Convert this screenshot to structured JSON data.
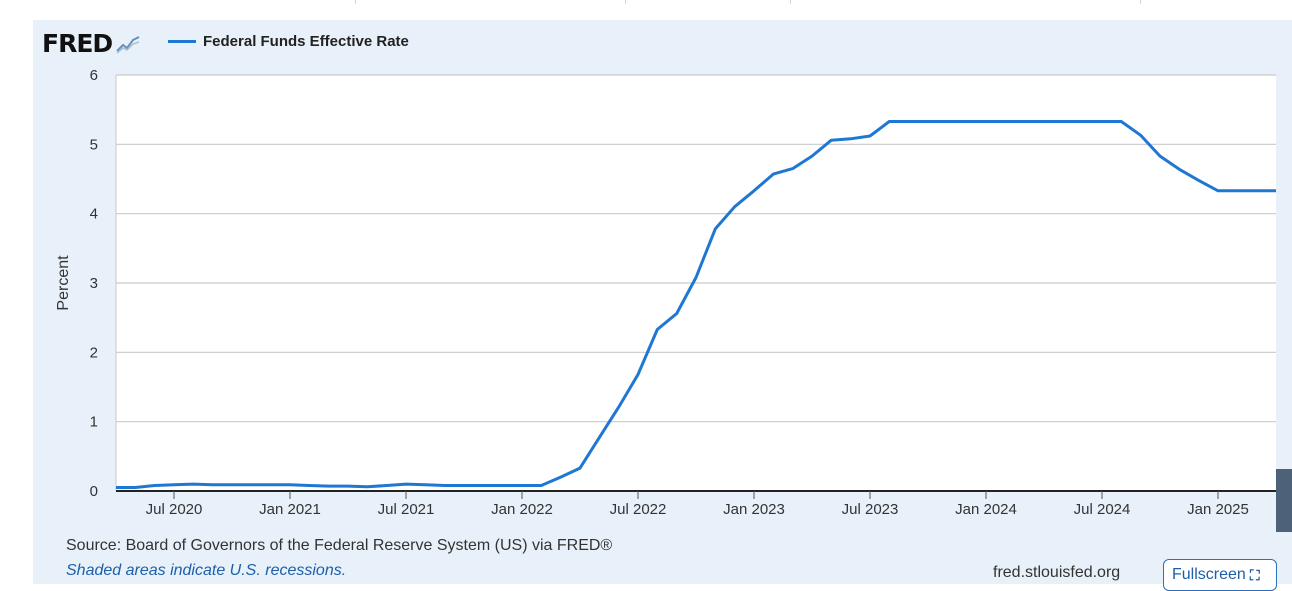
{
  "brand": "FRED",
  "brand_icon": "trend-graph-icon",
  "legend": {
    "label": "Federal Funds Effective Rate",
    "color": "#1f77d4"
  },
  "source_text": "Source: Board of Governors of the Federal Reserve System (US) via FRED®",
  "shaded_text": "Shaded areas indicate U.S. recessions.",
  "site": "fred.stlouisfed.org",
  "fullscreen_label": "Fullscreen",
  "fullscreen_icon": "expand-icon",
  "chart_data": {
    "type": "line",
    "title": "",
    "xlabel": "",
    "ylabel": "Percent",
    "ylim": [
      0,
      6
    ],
    "yticks": [
      0,
      1,
      2,
      3,
      4,
      5,
      6
    ],
    "xlim": [
      "2020-04",
      "2025-04"
    ],
    "xticks": [
      {
        "label": "Jul 2020",
        "month": 3
      },
      {
        "label": "Jan 2021",
        "month": 9
      },
      {
        "label": "Jul 2021",
        "month": 15
      },
      {
        "label": "Jan 2022",
        "month": 21
      },
      {
        "label": "Jul 2022",
        "month": 27
      },
      {
        "label": "Jan 2023",
        "month": 33
      },
      {
        "label": "Jul 2023",
        "month": 39
      },
      {
        "label": "Jan 2024",
        "month": 45
      },
      {
        "label": "Jul 2024",
        "month": 51
      },
      {
        "label": "Jan 2025",
        "month": 57
      }
    ],
    "grid": true,
    "series": [
      {
        "name": "Federal Funds Effective Rate",
        "x": [
          "2020-04",
          "2020-05",
          "2020-06",
          "2020-07",
          "2020-08",
          "2020-09",
          "2020-10",
          "2020-11",
          "2020-12",
          "2021-01",
          "2021-02",
          "2021-03",
          "2021-04",
          "2021-05",
          "2021-06",
          "2021-07",
          "2021-08",
          "2021-09",
          "2021-10",
          "2021-11",
          "2021-12",
          "2022-01",
          "2022-02",
          "2022-03",
          "2022-04",
          "2022-05",
          "2022-06",
          "2022-07",
          "2022-08",
          "2022-09",
          "2022-10",
          "2022-11",
          "2022-12",
          "2023-01",
          "2023-02",
          "2023-03",
          "2023-04",
          "2023-05",
          "2023-06",
          "2023-07",
          "2023-08",
          "2023-09",
          "2023-10",
          "2023-11",
          "2023-12",
          "2024-01",
          "2024-02",
          "2024-03",
          "2024-04",
          "2024-05",
          "2024-06",
          "2024-07",
          "2024-08",
          "2024-09",
          "2024-10",
          "2024-11",
          "2024-12",
          "2025-01",
          "2025-02",
          "2025-03",
          "2025-04"
        ],
        "values": [
          0.05,
          0.05,
          0.08,
          0.09,
          0.1,
          0.09,
          0.09,
          0.09,
          0.09,
          0.09,
          0.08,
          0.07,
          0.07,
          0.06,
          0.08,
          0.1,
          0.09,
          0.08,
          0.08,
          0.08,
          0.08,
          0.08,
          0.08,
          0.2,
          0.33,
          0.77,
          1.21,
          1.68,
          2.33,
          2.56,
          3.08,
          3.78,
          4.1,
          4.33,
          4.57,
          4.65,
          4.83,
          5.06,
          5.08,
          5.12,
          5.33,
          5.33,
          5.33,
          5.33,
          5.33,
          5.33,
          5.33,
          5.33,
          5.33,
          5.33,
          5.33,
          5.33,
          5.33,
          5.13,
          4.83,
          4.64,
          4.48,
          4.33,
          4.33,
          4.33,
          4.33
        ]
      }
    ]
  }
}
